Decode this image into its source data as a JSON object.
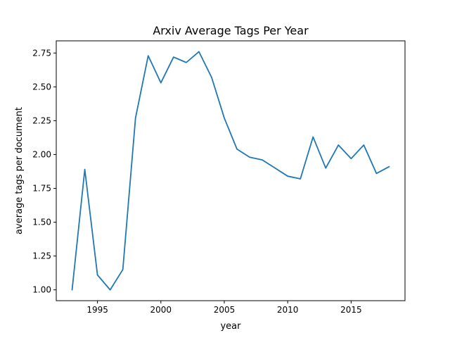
{
  "chart_data": {
    "type": "line",
    "title": "Arxiv Average Tags Per Year",
    "xlabel": "year",
    "ylabel": "average tags per document",
    "xlim": [
      1991.75,
      2019.25
    ],
    "ylim": [
      0.92,
      2.84
    ],
    "x_ticks": [
      1995,
      2000,
      2005,
      2010,
      2015
    ],
    "y_ticks": [
      1.0,
      1.25,
      1.5,
      1.75,
      2.0,
      2.25,
      2.5,
      2.75
    ],
    "y_tick_labels": [
      "1.00",
      "1.25",
      "1.50",
      "1.75",
      "2.00",
      "2.25",
      "2.50",
      "2.75"
    ],
    "grid": false,
    "series": [
      {
        "color": "#1f77b4",
        "x": [
          1993,
          1994,
          1995,
          1996,
          1997,
          1998,
          1999,
          2000,
          2001,
          2002,
          2003,
          2004,
          2005,
          2006,
          2007,
          2008,
          2009,
          2010,
          2011,
          2012,
          2013,
          2014,
          2015,
          2016,
          2017,
          2018
        ],
        "y": [
          1.0,
          1.89,
          1.11,
          1.0,
          1.15,
          2.27,
          2.73,
          2.53,
          2.72,
          2.68,
          2.76,
          2.57,
          2.27,
          2.04,
          1.98,
          1.96,
          1.9,
          1.84,
          1.82,
          2.13,
          1.9,
          2.07,
          1.97,
          2.07,
          1.86,
          1.91
        ]
      }
    ]
  }
}
